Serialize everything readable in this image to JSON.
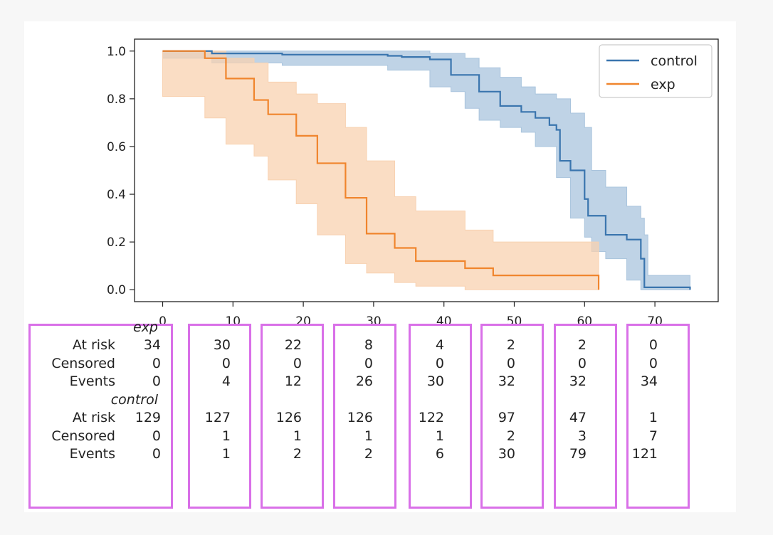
{
  "chart_data": {
    "type": "line",
    "title": "",
    "xlabel": "",
    "ylabel": "",
    "xlim": [
      -4,
      79
    ],
    "ylim": [
      -0.05,
      1.05
    ],
    "x_ticks": [
      0,
      10,
      20,
      30,
      40,
      50,
      60,
      70
    ],
    "y_ticks": [
      "0.0",
      "0.2",
      "0.4",
      "0.6",
      "0.8",
      "1.0"
    ],
    "y_tick_values": [
      0.0,
      0.2,
      0.4,
      0.6,
      0.8,
      1.0
    ],
    "legend": {
      "location": "top-right",
      "entries": [
        "control",
        "exp"
      ]
    },
    "series": [
      {
        "name": "control",
        "color": "#3a75ae",
        "band_color": "#a9c4dd",
        "steps": [
          [
            0,
            1.0
          ],
          [
            7,
            0.99
          ],
          [
            17,
            0.985
          ],
          [
            32,
            0.98
          ],
          [
            34,
            0.975
          ],
          [
            38,
            0.965
          ],
          [
            41,
            0.955
          ],
          [
            41,
            0.9
          ],
          [
            43,
            0.9
          ],
          [
            45,
            0.875
          ],
          [
            45,
            0.83
          ],
          [
            48,
            0.83
          ],
          [
            48,
            0.77
          ],
          [
            51,
            0.77
          ],
          [
            51,
            0.745
          ],
          [
            53,
            0.745
          ],
          [
            53,
            0.72
          ],
          [
            55,
            0.72
          ],
          [
            55,
            0.69
          ],
          [
            56,
            0.69
          ],
          [
            56,
            0.67
          ],
          [
            56.5,
            0.67
          ],
          [
            56.5,
            0.54
          ],
          [
            58,
            0.54
          ],
          [
            58,
            0.5
          ],
          [
            60,
            0.5
          ],
          [
            60,
            0.38
          ],
          [
            60.5,
            0.38
          ],
          [
            60.5,
            0.31
          ],
          [
            61,
            0.31
          ],
          [
            61,
            0.31
          ],
          [
            63,
            0.31
          ],
          [
            63,
            0.23
          ],
          [
            66,
            0.23
          ],
          [
            66,
            0.21
          ],
          [
            68,
            0.21
          ],
          [
            68,
            0.13
          ],
          [
            68.5,
            0.13
          ],
          [
            68.5,
            0.01
          ],
          [
            75,
            0.01
          ],
          [
            75,
            0.0
          ]
        ],
        "upper": [
          [
            0,
            1.0
          ],
          [
            7,
            1.0
          ],
          [
            17,
            1.0
          ],
          [
            32,
            1.0
          ],
          [
            38,
            0.99
          ],
          [
            41,
            0.99
          ],
          [
            43,
            0.97
          ],
          [
            45,
            0.93
          ],
          [
            48,
            0.89
          ],
          [
            51,
            0.85
          ],
          [
            53,
            0.82
          ],
          [
            56,
            0.8
          ],
          [
            58,
            0.74
          ],
          [
            60,
            0.68
          ],
          [
            61,
            0.5
          ],
          [
            63,
            0.43
          ],
          [
            66,
            0.35
          ],
          [
            68,
            0.3
          ],
          [
            68.5,
            0.23
          ],
          [
            69,
            0.06
          ],
          [
            75,
            0.06
          ]
        ],
        "lower": [
          [
            0,
            1.0
          ],
          [
            7,
            0.97
          ],
          [
            17,
            0.95
          ],
          [
            32,
            0.94
          ],
          [
            38,
            0.92
          ],
          [
            41,
            0.85
          ],
          [
            43,
            0.83
          ],
          [
            45,
            0.76
          ],
          [
            48,
            0.71
          ],
          [
            51,
            0.68
          ],
          [
            53,
            0.66
          ],
          [
            56,
            0.6
          ],
          [
            58,
            0.47
          ],
          [
            60,
            0.3
          ],
          [
            61,
            0.22
          ],
          [
            63,
            0.16
          ],
          [
            66,
            0.13
          ],
          [
            68,
            0.04
          ],
          [
            68.5,
            0.0
          ],
          [
            75,
            0.0
          ]
        ],
        "at_risk": [
          129,
          127,
          126,
          126,
          122,
          97,
          47,
          1
        ],
        "censored": [
          0,
          1,
          1,
          1,
          1,
          2,
          3,
          7
        ],
        "events": [
          0,
          1,
          2,
          2,
          6,
          30,
          79,
          121
        ]
      },
      {
        "name": "exp",
        "color": "#f0852d",
        "band_color": "#f8d1b0",
        "steps": [
          [
            0,
            1.0
          ],
          [
            6,
            1.0
          ],
          [
            6,
            0.97
          ],
          [
            9,
            0.97
          ],
          [
            9,
            0.885
          ],
          [
            13,
            0.885
          ],
          [
            13,
            0.795
          ],
          [
            15,
            0.795
          ],
          [
            15,
            0.735
          ],
          [
            19,
            0.735
          ],
          [
            19,
            0.645
          ],
          [
            22,
            0.645
          ],
          [
            22,
            0.53
          ],
          [
            26,
            0.53
          ],
          [
            26,
            0.385
          ],
          [
            29,
            0.385
          ],
          [
            29,
            0.235
          ],
          [
            33,
            0.235
          ],
          [
            33,
            0.175
          ],
          [
            36,
            0.175
          ],
          [
            36,
            0.12
          ],
          [
            43,
            0.12
          ],
          [
            43,
            0.09
          ],
          [
            47,
            0.09
          ],
          [
            47,
            0.06
          ],
          [
            62,
            0.06
          ],
          [
            62,
            0.0
          ]
        ],
        "upper": [
          [
            0,
            1.0
          ],
          [
            6,
            1.0
          ],
          [
            9,
            0.97
          ],
          [
            13,
            0.95
          ],
          [
            15,
            0.87
          ],
          [
            19,
            0.82
          ],
          [
            22,
            0.78
          ],
          [
            26,
            0.68
          ],
          [
            29,
            0.54
          ],
          [
            33,
            0.39
          ],
          [
            36,
            0.33
          ],
          [
            43,
            0.25
          ],
          [
            47,
            0.2
          ],
          [
            62,
            0.175
          ]
        ],
        "lower": [
          [
            0,
            1.0
          ],
          [
            6,
            0.81
          ],
          [
            9,
            0.72
          ],
          [
            13,
            0.61
          ],
          [
            15,
            0.56
          ],
          [
            19,
            0.46
          ],
          [
            22,
            0.36
          ],
          [
            26,
            0.23
          ],
          [
            29,
            0.11
          ],
          [
            33,
            0.07
          ],
          [
            36,
            0.03
          ],
          [
            43,
            0.015
          ],
          [
            47,
            0.0
          ],
          [
            62,
            0.0
          ]
        ],
        "at_risk": [
          34,
          30,
          22,
          8,
          4,
          2,
          2,
          0
        ],
        "censored": [
          0,
          0,
          0,
          0,
          0,
          0,
          0,
          0
        ],
        "events": [
          0,
          4,
          12,
          26,
          30,
          32,
          32,
          34
        ]
      }
    ]
  },
  "risk_table": {
    "row_labels": {
      "at_risk": "At risk",
      "censored": "Censored",
      "events": "Events"
    },
    "groups": [
      "exp",
      "control"
    ],
    "highlight_color": "#d970e8"
  }
}
